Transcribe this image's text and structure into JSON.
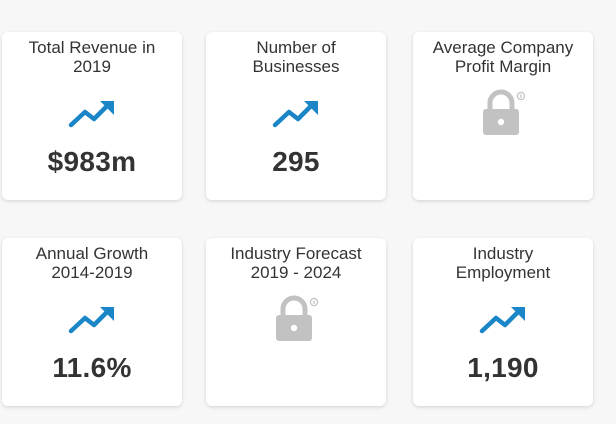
{
  "colors": {
    "trend": "#1a86c8",
    "lock": "#c2c2c2",
    "text": "#333333",
    "card_bg": "#ffffff"
  },
  "cards": [
    {
      "label_lines": [
        "Total Revenue in",
        "2019"
      ],
      "value": "$983m",
      "icon": "trend-up-icon"
    },
    {
      "label_lines": [
        "Number of",
        "Businesses"
      ],
      "value": "295",
      "icon": "trend-up-icon"
    },
    {
      "label_lines": [
        "Average Company",
        "Profit Margin"
      ],
      "value": "",
      "icon": "lock-icon"
    },
    {
      "label_lines": [
        "Annual Growth",
        "2014-2019"
      ],
      "value": "11.6%",
      "icon": "trend-up-icon"
    },
    {
      "label_lines": [
        "Industry Forecast",
        "2019 - 2024"
      ],
      "value": "",
      "icon": "lock-icon"
    },
    {
      "label_lines": [
        "Industry",
        "Employment"
      ],
      "value": "1,190",
      "icon": "trend-up-icon"
    }
  ]
}
